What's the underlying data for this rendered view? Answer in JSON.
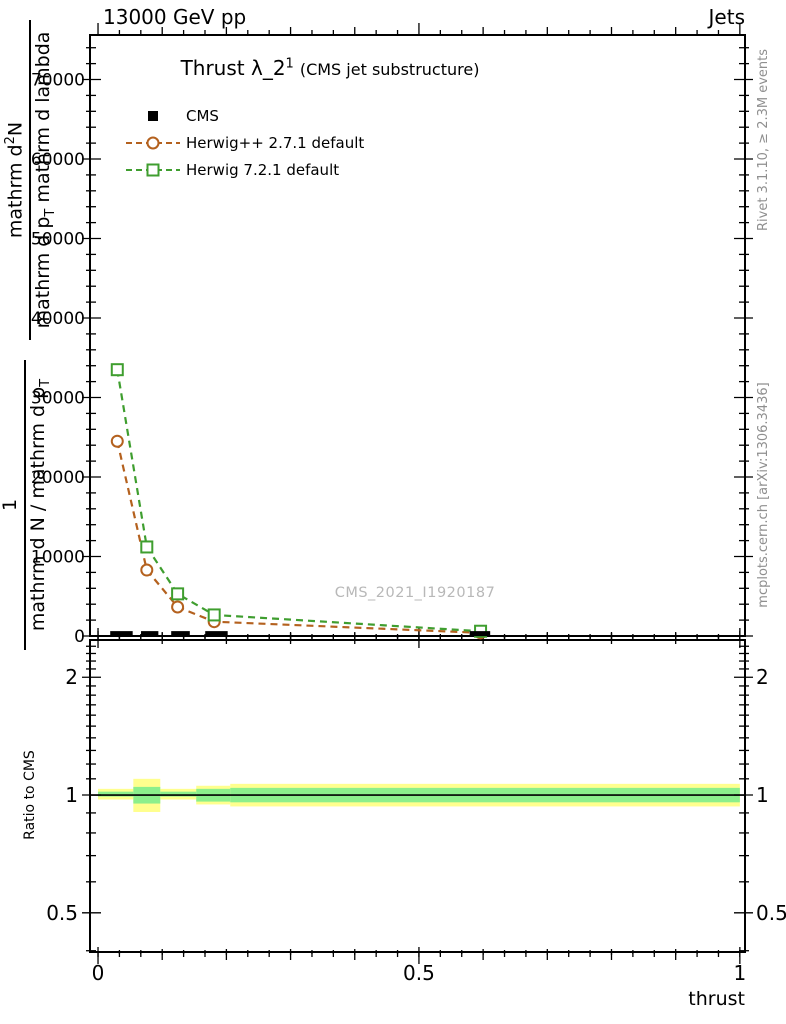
{
  "header": {
    "left": "13000 GeV pp",
    "right": "Jets"
  },
  "title": {
    "main": "Thrust λ_2",
    "sup": "1",
    "suffix": "(CMS jet substructure)"
  },
  "legend": [
    {
      "label": "CMS",
      "marker": "filled-square",
      "color": "#000000",
      "dashed": false
    },
    {
      "label": "Herwig++ 2.7.1 default",
      "marker": "open-circle",
      "color": "#b4611e",
      "dashed": true
    },
    {
      "label": "Herwig 7.2.1 default",
      "marker": "open-square",
      "color": "#3f9e2f",
      "dashed": true
    }
  ],
  "watermark": "CMS_2021_I1920187",
  "side_notes": {
    "top": "Rivet 3.1.10, ≥ 2.3M events",
    "bottom": "mcplots.cern.ch [arXiv:1306.3436]"
  },
  "ylabel": {
    "frac_top": {
      "num_a": "mathrm d",
      "num_sup": "2",
      "num_b": "N",
      "den_a": "mathrm d p",
      "den_sub": "T",
      "den_b": " mathrm d lambda"
    },
    "frac_bottom": {
      "num": "1",
      "den_a": "mathrm d N / mathrm d p",
      "den_sub": "T"
    }
  },
  "ratio_ylabel": "Ratio to CMS",
  "xlabel": "thrust",
  "chart_data": {
    "type": "line",
    "title": "Thrust λ_2^1 (CMS jet substructure)",
    "beam": "13000 GeV pp",
    "analysis_tag": "Jets",
    "xlabel": "thrust",
    "ylabel_plain": "1/(dN/dp_T) d^2N/(dp_T dlambda)",
    "legend_position": "top-left",
    "grid": false,
    "main_panel": {
      "xlim": [
        -0.0125,
        1.008
      ],
      "ylim": [
        0,
        75600
      ],
      "x_major_ticks": [
        0,
        0.5,
        1
      ],
      "x_tick_labels": [
        "0",
        "0.5",
        "1"
      ],
      "x_minor_divisions": 30,
      "y_major_ticks": [
        0,
        10000,
        20000,
        30000,
        40000,
        50000,
        60000,
        70000
      ],
      "y_tick_labels": [
        "0",
        "10000",
        "20000",
        "30000",
        "40000",
        "50000",
        "60000",
        "70000"
      ],
      "y_minor_step": 2000
    },
    "series": [
      {
        "name": "Herwig++ 2.7.1 default",
        "color": "#b4611e",
        "marker": "circle",
        "dashed": true,
        "x": [
          0.03,
          0.076,
          0.124,
          0.181,
          0.596
        ],
        "y": [
          24500,
          8300,
          3650,
          1800,
          400
        ]
      },
      {
        "name": "Herwig 7.2.1 default",
        "color": "#3f9e2f",
        "marker": "square",
        "dashed": true,
        "x": [
          0.03,
          0.076,
          0.124,
          0.181,
          0.596
        ],
        "y": [
          33500,
          11200,
          5300,
          2650,
          600
        ]
      }
    ],
    "cms_data": {
      "name": "CMS",
      "color": "#000000",
      "marker": "filled-bar",
      "bins": [
        {
          "xlo": 0.019,
          "xhi": 0.054,
          "y": 300
        },
        {
          "xlo": 0.067,
          "xhi": 0.094,
          "y": 300
        },
        {
          "xlo": 0.114,
          "xhi": 0.143,
          "y": 300
        },
        {
          "xlo": 0.167,
          "xhi": 0.202,
          "y": 300
        },
        {
          "xlo": 0.579,
          "xhi": 0.611,
          "y": 300
        }
      ]
    },
    "ratio_panel": {
      "ylabel": "Ratio to CMS",
      "log_scale": true,
      "ylim": [
        0.397,
        2.49
      ],
      "y_major_ticks": [
        0.5,
        1,
        2
      ],
      "y_tick_labels": [
        "0.5",
        "1",
        "2"
      ],
      "y_minor_ticks": [
        0.4,
        0.6,
        0.7,
        0.8,
        0.9,
        1.1,
        1.2,
        1.3,
        1.4,
        1.5,
        1.6,
        1.7,
        1.8,
        1.9,
        2.1,
        2.2,
        2.3,
        2.4
      ],
      "reference_line": 1,
      "band_colors": {
        "outer": "#ffff8e",
        "inner": "#8cef8c"
      },
      "bands": [
        {
          "xlo": 0.0,
          "xhi": 0.055,
          "yellow": [
            0.974,
            1.037
          ],
          "green": [
            0.991,
            1.02
          ]
        },
        {
          "xlo": 0.055,
          "xhi": 0.097,
          "yellow": [
            0.905,
            1.1
          ],
          "green": [
            0.951,
            1.049
          ]
        },
        {
          "xlo": 0.097,
          "xhi": 0.153,
          "yellow": [
            0.974,
            1.037
          ],
          "green": [
            0.991,
            1.02
          ]
        },
        {
          "xlo": 0.153,
          "xhi": 0.206,
          "yellow": [
            0.946,
            1.056
          ],
          "green": [
            0.962,
            1.037
          ]
        },
        {
          "xlo": 0.206,
          "xhi": 1.0,
          "yellow": [
            0.935,
            1.068
          ],
          "green": [
            0.958,
            1.043
          ]
        }
      ]
    }
  }
}
